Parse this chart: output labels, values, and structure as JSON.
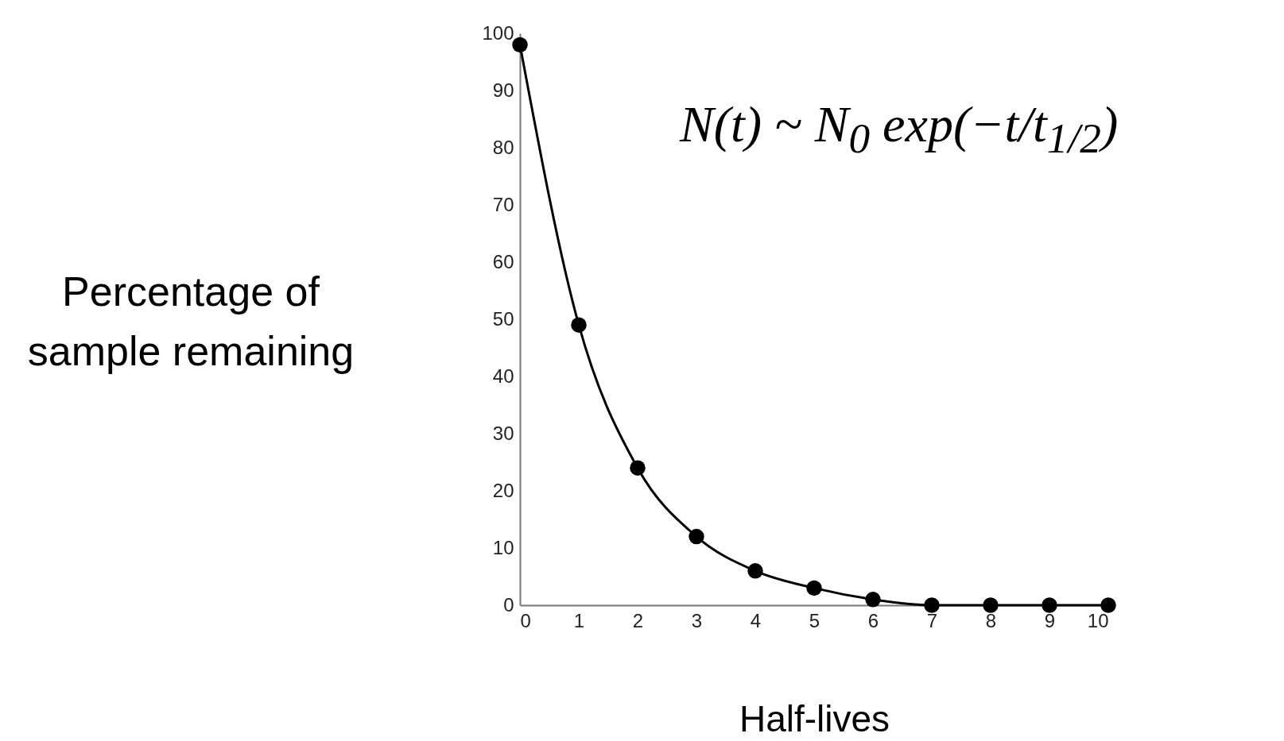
{
  "chart_data": {
    "type": "line",
    "xlabel": "Half-lives",
    "ylabel": "Percentage of sample remaining",
    "annotations": [
      "N(t) ~ N$_{0}$ exp(−t/t$_{1/2}$)"
    ],
    "x": [
      0,
      1,
      2,
      3,
      4,
      5,
      6,
      7,
      8,
      9,
      10
    ],
    "series": [
      {
        "color": "#000000",
        "values": [
          98,
          49,
          24,
          12,
          6,
          3,
          1,
          0,
          0,
          0,
          0
        ]
      }
    ],
    "xlim": [
      0,
      10
    ],
    "xticks": [
      0,
      1,
      2,
      3,
      4,
      5,
      6,
      7,
      8,
      9,
      10
    ],
    "ylim": [
      0,
      100
    ],
    "yticks": [
      0,
      10,
      20,
      30,
      40,
      50,
      60,
      70,
      80,
      90,
      100
    ],
    "marker": "circle",
    "line_style": "solid"
  }
}
